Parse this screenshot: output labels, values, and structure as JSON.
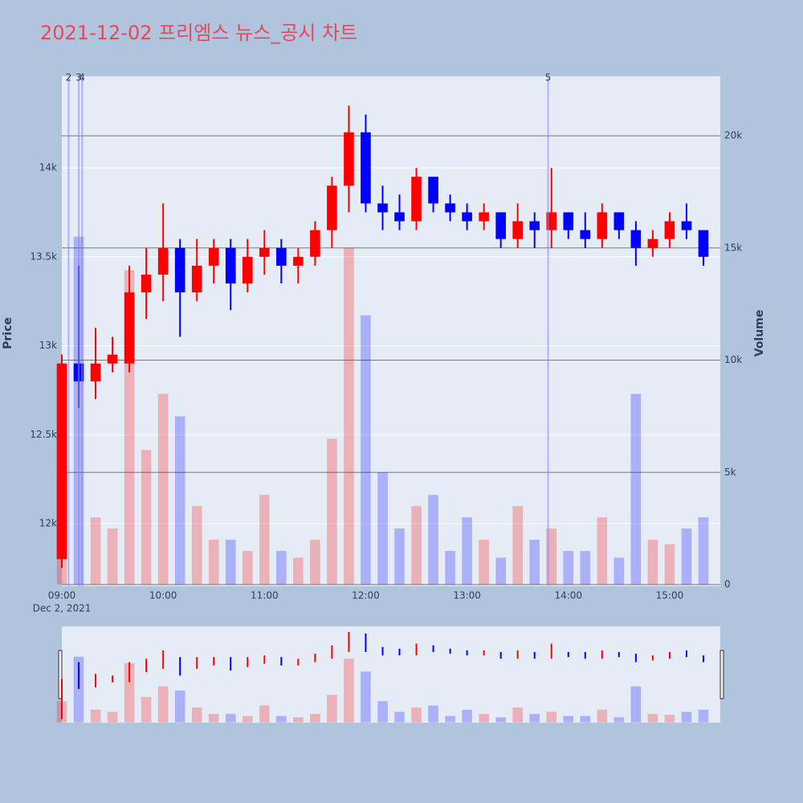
{
  "chart_data": {
    "type": "candlestick",
    "title": "2021-12-02 프리엠스 뉴스_공시 차트",
    "y_label": "Price",
    "y2_label": "Volume",
    "x_date_label": "Dec 2, 2021",
    "x": [
      "09:00",
      "09:10",
      "09:20",
      "09:30",
      "09:40",
      "09:50",
      "10:00",
      "10:10",
      "10:20",
      "10:30",
      "10:40",
      "10:50",
      "11:00",
      "11:10",
      "11:20",
      "11:30",
      "11:40",
      "11:50",
      "12:00",
      "12:10",
      "12:20",
      "12:30",
      "12:40",
      "12:50",
      "13:00",
      "13:10",
      "13:20",
      "13:30",
      "13:40",
      "13:50",
      "14:00",
      "14:10",
      "14:20",
      "14:30",
      "14:40",
      "14:50",
      "15:00",
      "15:10",
      "15:20"
    ],
    "open": [
      11800,
      12900,
      12800,
      12900,
      12900,
      13300,
      13400,
      13550,
      13300,
      13450,
      13550,
      13350,
      13500,
      13550,
      13450,
      13500,
      13650,
      13900,
      14200,
      13800,
      13750,
      13700,
      13950,
      13800,
      13750,
      13700,
      13750,
      13600,
      13700,
      13650,
      13750,
      13650,
      13600,
      13750,
      13650,
      13550,
      13600,
      13700,
      13650
    ],
    "high": [
      12950,
      13450,
      13100,
      13050,
      13450,
      13550,
      13800,
      13600,
      13600,
      13600,
      13600,
      13600,
      13650,
      13600,
      13550,
      13700,
      13950,
      14350,
      14300,
      13900,
      13850,
      14000,
      13950,
      13850,
      13800,
      13800,
      13750,
      13800,
      13750,
      14000,
      13750,
      13750,
      13800,
      13750,
      13700,
      13650,
      13750,
      13800,
      13650
    ],
    "low": [
      11750,
      12650,
      12700,
      12850,
      12850,
      13150,
      13250,
      13050,
      13250,
      13350,
      13200,
      13300,
      13400,
      13350,
      13350,
      13450,
      13550,
      13750,
      13750,
      13650,
      13650,
      13650,
      13750,
      13700,
      13650,
      13650,
      13550,
      13550,
      13550,
      13550,
      13600,
      13550,
      13550,
      13600,
      13450,
      13500,
      13550,
      13600,
      13450
    ],
    "close": [
      12900,
      12800,
      12900,
      12950,
      13300,
      13400,
      13550,
      13300,
      13450,
      13550,
      13350,
      13500,
      13550,
      13450,
      13500,
      13650,
      13900,
      14200,
      13800,
      13750,
      13700,
      13950,
      13800,
      13750,
      13700,
      13750,
      13600,
      13700,
      13650,
      13750,
      13650,
      13600,
      13750,
      13650,
      13550,
      13600,
      13700,
      13650,
      13500
    ],
    "volume": [
      5000,
      15500,
      3000,
      2500,
      14000,
      6000,
      8500,
      7500,
      3500,
      2000,
      2000,
      1500,
      4000,
      1500,
      1200,
      2000,
      6500,
      15000,
      12000,
      5000,
      2500,
      3500,
      4000,
      1500,
      3000,
      2000,
      1200,
      3500,
      2000,
      2500,
      1500,
      1500,
      3000,
      1200,
      8500,
      2000,
      1800,
      2500,
      3000
    ],
    "increasing_color": "#ff0000",
    "decreasing_color": "#0000ff",
    "news": [
      {
        "x": "09:04",
        "label": "2"
      },
      {
        "x": "09:10",
        "label": "3"
      },
      {
        "x": "09:12",
        "label": "4"
      },
      {
        "x": "13:48",
        "label": "5"
      }
    ],
    "xlim": [
      "09:00",
      "15:30"
    ],
    "xticks": [
      "09:00",
      "10:00",
      "11:00",
      "12:00",
      "13:00",
      "14:00",
      "15:00"
    ],
    "ylim": [
      11648,
      14515
    ],
    "yticks": [
      {
        "value": 12000,
        "label": "12k"
      },
      {
        "value": 12500,
        "label": "12.5k"
      },
      {
        "value": 13000,
        "label": "13k"
      },
      {
        "value": 13500,
        "label": "13.5k"
      },
      {
        "value": 14000,
        "label": "14k"
      }
    ],
    "y2lim": [
      -70,
      22650
    ],
    "y2ticks": [
      0,
      {
        "value": 5000,
        "label": "5k"
      },
      {
        "value": 10000,
        "label": "10k"
      },
      {
        "value": 15000,
        "label": "15k"
      },
      {
        "value": 20000,
        "label": "20k"
      }
    ],
    "grid": true
  }
}
